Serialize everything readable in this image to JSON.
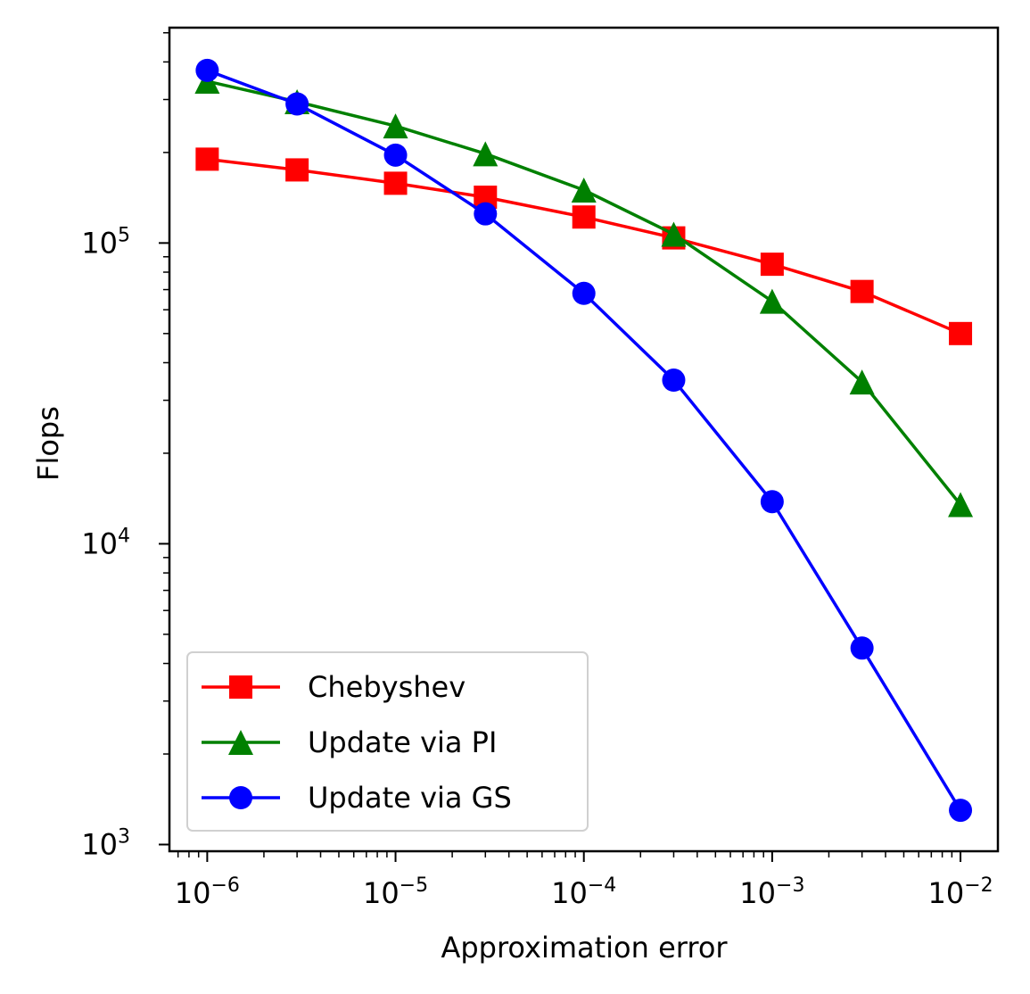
{
  "chart_data": {
    "type": "line",
    "title": "",
    "xlabel": "Approximation error",
    "ylabel": "Flops",
    "xscale": "log",
    "yscale": "log",
    "xlim": [
      6.3e-07,
      0.0158
    ],
    "ylim": [
      950,
      520000
    ],
    "x": [
      1e-06,
      3e-06,
      1e-05,
      3e-05,
      0.0001,
      0.0003,
      0.001,
      0.003,
      0.01
    ],
    "x_ticks": [
      {
        "value": 1e-06,
        "base": "10",
        "exp": "−6"
      },
      {
        "value": 1e-05,
        "base": "10",
        "exp": "−5"
      },
      {
        "value": 0.0001,
        "base": "10",
        "exp": "−4"
      },
      {
        "value": 0.001,
        "base": "10",
        "exp": "−3"
      },
      {
        "value": 0.01,
        "base": "10",
        "exp": "−2"
      }
    ],
    "y_ticks": [
      {
        "value": 1000,
        "base": "10",
        "exp": "3"
      },
      {
        "value": 10000,
        "base": "10",
        "exp": "4"
      },
      {
        "value": 100000,
        "base": "10",
        "exp": "5"
      }
    ],
    "grid": false,
    "legend_position": "lower-left",
    "series": [
      {
        "name": "Chebyshev",
        "color": "#ff0000",
        "marker": "square",
        "values": [
          190000,
          175000,
          158000,
          142000,
          122000,
          104000,
          85000,
          69000,
          50000
        ]
      },
      {
        "name": "Update via PI",
        "color": "#008000",
        "marker": "triangle",
        "values": [
          345000,
          295000,
          245000,
          198000,
          150000,
          107000,
          64000,
          34500,
          13500
        ]
      },
      {
        "name": "Update via GS",
        "color": "#0000ff",
        "marker": "circle",
        "values": [
          375000,
          290000,
          196000,
          125000,
          68000,
          35000,
          13800,
          4500,
          1300
        ]
      }
    ]
  }
}
